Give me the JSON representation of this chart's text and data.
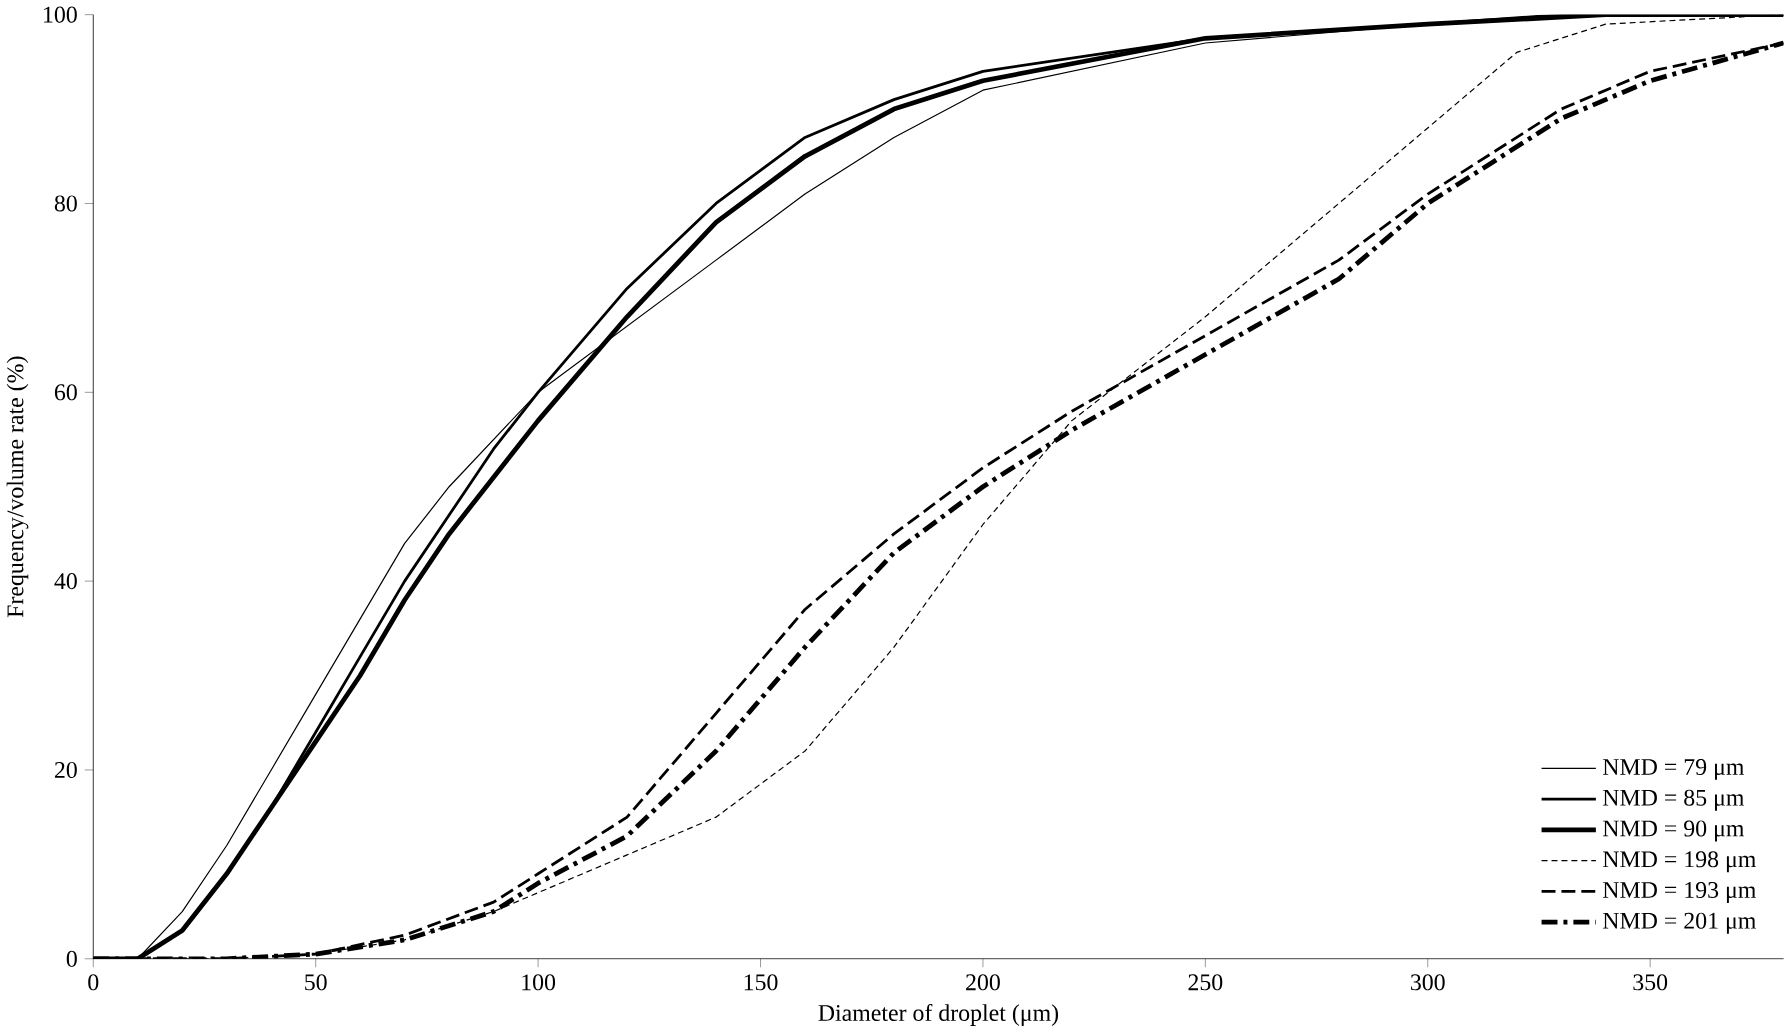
{
  "chart_data": {
    "type": "line",
    "xlabel": "Diameter of droplet (μm)",
    "ylabel": "Frequency/volume rate (%)",
    "xlim": [
      0,
      380
    ],
    "xticks": [
      0,
      50,
      100,
      150,
      200,
      250,
      300,
      350
    ],
    "ylim": [
      0,
      100
    ],
    "yticks": [
      0,
      20,
      40,
      60,
      80,
      100
    ],
    "legend": "right",
    "grid": false,
    "marker": "none",
    "series": [
      {
        "name": "NMD = 79 μm",
        "color": "#000000",
        "line_style": "solid",
        "x": [
          0,
          10,
          20,
          30,
          40,
          50,
          60,
          70,
          80,
          90,
          100,
          120,
          140,
          160,
          180,
          200,
          250,
          300,
          330,
          380
        ],
        "values": [
          0,
          0,
          5,
          12,
          20,
          28,
          36,
          44,
          50,
          55,
          60,
          67,
          74,
          81,
          87,
          92,
          97,
          99,
          100,
          100
        ]
      },
      {
        "name": "NMD = 85 μm",
        "color": "#000000",
        "line_style": "solid",
        "x": [
          0,
          10,
          20,
          30,
          40,
          50,
          60,
          70,
          80,
          90,
          100,
          120,
          140,
          160,
          180,
          200,
          250,
          300,
          330,
          380
        ],
        "values": [
          0,
          0,
          3,
          9,
          16,
          24,
          32,
          40,
          47,
          54,
          60,
          71,
          80,
          87,
          91,
          94,
          97.5,
          99,
          100,
          100
        ]
      },
      {
        "name": "NMD = 90 μm",
        "color": "#000000",
        "line_style": "solid",
        "x": [
          0,
          10,
          20,
          30,
          40,
          50,
          60,
          70,
          80,
          90,
          100,
          120,
          140,
          160,
          180,
          200,
          250,
          300,
          340,
          380
        ],
        "values": [
          0,
          0,
          3,
          9,
          16,
          23,
          30,
          38,
          45,
          51,
          57,
          68,
          78,
          85,
          90,
          93,
          97.5,
          99,
          100,
          100
        ]
      },
      {
        "name": "NMD = 198 μm",
        "color": "#000000",
        "line_style": "dashed",
        "x": [
          0,
          30,
          50,
          70,
          90,
          100,
          120,
          140,
          160,
          180,
          200,
          220,
          250,
          280,
          300,
          320,
          340,
          380
        ],
        "values": [
          0,
          0,
          0.5,
          2,
          5,
          7,
          11,
          15,
          22,
          33,
          46,
          57,
          68,
          80,
          88,
          96,
          99,
          100
        ]
      },
      {
        "name": "NMD = 193 μm",
        "color": "#000000",
        "line_style": "dashed",
        "x": [
          0,
          30,
          50,
          70,
          90,
          100,
          120,
          140,
          160,
          180,
          200,
          220,
          250,
          280,
          300,
          330,
          350,
          380
        ],
        "values": [
          0,
          0,
          0.5,
          2.5,
          6,
          9,
          15,
          26,
          37,
          45,
          52,
          58,
          66,
          74,
          81,
          90,
          94,
          97
        ]
      },
      {
        "name": "NMD = 201 μm",
        "color": "#000000",
        "line_style": "dashed",
        "x": [
          0,
          30,
          50,
          70,
          90,
          100,
          120,
          140,
          160,
          180,
          200,
          220,
          250,
          280,
          300,
          330,
          350,
          380
        ],
        "values": [
          0,
          0,
          0.5,
          2,
          5,
          8,
          13,
          22,
          33,
          43,
          50,
          56,
          64,
          72,
          80,
          89,
          93,
          97
        ]
      }
    ]
  }
}
